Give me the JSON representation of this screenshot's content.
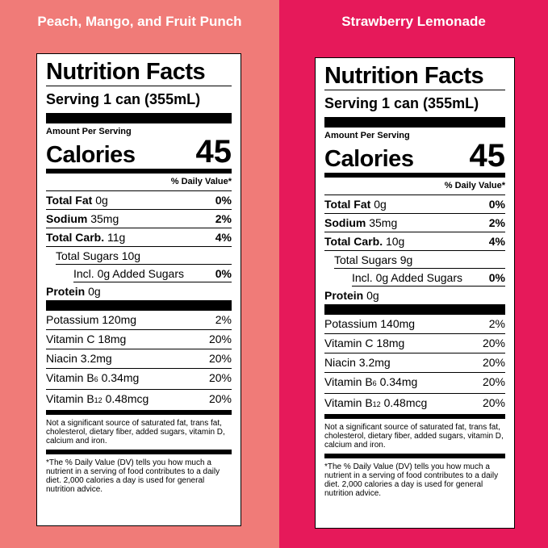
{
  "panels": [
    {
      "title": "Peach, Mango, and Fruit Punch",
      "label": {
        "heading": "Nutrition Facts",
        "serving": "Serving 1 can (355mL)",
        "amount_per_serving": "Amount Per Serving",
        "calories_label": "Calories",
        "calories": "45",
        "dv_header": "% Daily Value*",
        "total_fat": {
          "label": "Total Fat",
          "amount": "0g",
          "dv": "0%"
        },
        "sodium": {
          "label": "Sodium",
          "amount": "35mg",
          "dv": "2%"
        },
        "total_carb": {
          "label": "Total Carb.",
          "amount": "11g",
          "dv": "4%"
        },
        "total_sugars": "Total Sugars 10g",
        "added_sugars": {
          "label": "Incl. 0g Added Sugars",
          "dv": "0%"
        },
        "protein": {
          "label": "Protein",
          "amount": "0g"
        },
        "potassium": {
          "label": "Potassium 120mg",
          "dv": "2%"
        },
        "vitamin_c": {
          "label": "Vitamin C 18mg",
          "dv": "20%"
        },
        "niacin": {
          "label": "Niacin 3.2mg",
          "dv": "20%"
        },
        "vitamin_b6": {
          "prefix": "Vitamin B",
          "sub": "6",
          "amount": " 0.34mg",
          "dv": "20%"
        },
        "vitamin_b12": {
          "prefix": "Vitamin B",
          "sub": "12",
          "amount": " 0.48mcg",
          "dv": "20%"
        },
        "note_1": "Not a significant source of saturated fat, trans fat, cholesterol, dietary fiber, added sugars, vitamin D, calcium and iron.",
        "note_2": "*The % Daily Value (DV) tells you how much a nutrient in a serving of food contributes to a daily diet. 2,000 calories a day is used for general nutrition advice."
      }
    },
    {
      "title": "Strawberry Lemonade",
      "label": {
        "heading": "Nutrition Facts",
        "serving": "Serving 1 can (355mL)",
        "amount_per_serving": "Amount Per Serving",
        "calories_label": "Calories",
        "calories": "45",
        "dv_header": "% Daily Value*",
        "total_fat": {
          "label": "Total Fat",
          "amount": "0g",
          "dv": "0%"
        },
        "sodium": {
          "label": "Sodium",
          "amount": "35mg",
          "dv": "2%"
        },
        "total_carb": {
          "label": "Total Carb.",
          "amount": "10g",
          "dv": "4%"
        },
        "total_sugars": "Total Sugars 9g",
        "added_sugars": {
          "label": "Incl. 0g Added Sugars",
          "dv": "0%"
        },
        "protein": {
          "label": "Protein",
          "amount": "0g"
        },
        "potassium": {
          "label": "Potassium 140mg",
          "dv": "2%"
        },
        "vitamin_c": {
          "label": "Vitamin C 18mg",
          "dv": "20%"
        },
        "niacin": {
          "label": "Niacin 3.2mg",
          "dv": "20%"
        },
        "vitamin_b6": {
          "prefix": "Vitamin B",
          "sub": "6",
          "amount": " 0.34mg",
          "dv": "20%"
        },
        "vitamin_b12": {
          "prefix": "Vitamin B",
          "sub": "12",
          "amount": " 0.48mcg",
          "dv": "20%"
        },
        "note_1": "Not a significant source of saturated fat, trans fat, cholesterol, dietary fiber, added sugars, vitamin D, calcium and iron.",
        "note_2": "*The % Daily Value (DV) tells you how much a nutrient in a serving of food contributes to a daily diet. 2,000 calories a day is used for general nutrition advice."
      }
    }
  ],
  "colors": {
    "left_background": "#f07b78",
    "right_background": "#e6195a",
    "label_background": "#ffffff"
  }
}
